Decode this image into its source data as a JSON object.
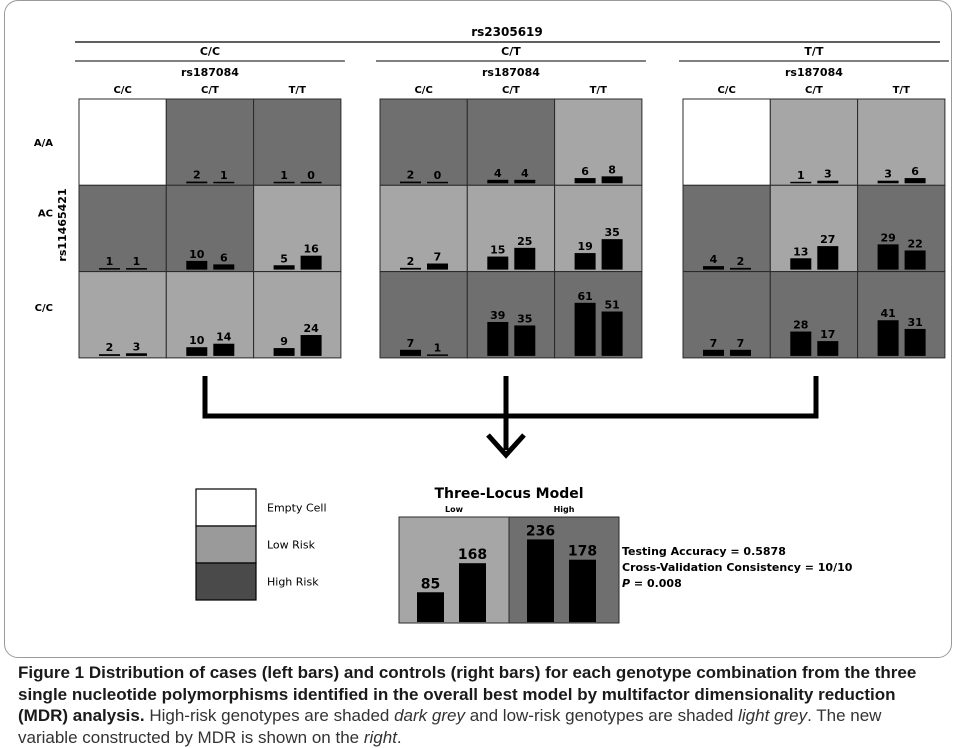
{
  "labels": {
    "top_snp": "rs2305619",
    "col_snp": "rs187084",
    "row_snp": "rs11465421",
    "top_genotypes": [
      "C/C",
      "C/T",
      "T/T"
    ],
    "col_genotypes": [
      "C/C",
      "C/T",
      "T/T"
    ],
    "row_genotypes": [
      "A/A",
      "AC",
      "C/C"
    ]
  },
  "colors": {
    "empty": "#ffffff",
    "low": "#a6a6a6",
    "high": "#6f6f6f",
    "legend_low": "#9a9a9a",
    "legend_high": "#4a4a4a",
    "bar": "#000000"
  },
  "chart_data": {
    "type": "bar",
    "description_bars": [
      "cases",
      "controls"
    ],
    "panels": [
      {
        "top_genotype": "C/C",
        "cells": [
          [
            {
              "risk": "empty",
              "values": null
            },
            {
              "risk": "high",
              "values": [
                2,
                1
              ]
            },
            {
              "risk": "high",
              "values": [
                1,
                0
              ]
            }
          ],
          [
            {
              "risk": "high",
              "values": [
                1,
                1
              ]
            },
            {
              "risk": "high",
              "values": [
                10,
                6
              ]
            },
            {
              "risk": "low",
              "values": [
                5,
                16
              ]
            }
          ],
          [
            {
              "risk": "low",
              "values": [
                2,
                3
              ]
            },
            {
              "risk": "low",
              "values": [
                10,
                14
              ]
            },
            {
              "risk": "low",
              "values": [
                9,
                24
              ]
            }
          ]
        ]
      },
      {
        "top_genotype": "C/T",
        "cells": [
          [
            {
              "risk": "high",
              "values": [
                2,
                0
              ]
            },
            {
              "risk": "high",
              "values": [
                4,
                4
              ]
            },
            {
              "risk": "low",
              "values": [
                6,
                8
              ]
            }
          ],
          [
            {
              "risk": "low",
              "values": [
                2,
                7
              ]
            },
            {
              "risk": "low",
              "values": [
                15,
                25
              ]
            },
            {
              "risk": "low",
              "values": [
                19,
                35
              ]
            }
          ],
          [
            {
              "risk": "high",
              "values": [
                7,
                1
              ]
            },
            {
              "risk": "high",
              "values": [
                39,
                35
              ]
            },
            {
              "risk": "high",
              "values": [
                61,
                51
              ]
            }
          ]
        ]
      },
      {
        "top_genotype": "T/T",
        "cells": [
          [
            {
              "risk": "empty",
              "values": null
            },
            {
              "risk": "low",
              "values": [
                1,
                3
              ]
            },
            {
              "risk": "low",
              "values": [
                3,
                6
              ]
            }
          ],
          [
            {
              "risk": "high",
              "values": [
                4,
                2
              ]
            },
            {
              "risk": "low",
              "values": [
                13,
                27
              ]
            },
            {
              "risk": "high",
              "values": [
                29,
                22
              ]
            }
          ],
          [
            {
              "risk": "high",
              "values": [
                7,
                7
              ]
            },
            {
              "risk": "high",
              "values": [
                28,
                17
              ]
            },
            {
              "risk": "high",
              "values": [
                41,
                31
              ]
            }
          ]
        ]
      }
    ],
    "model": {
      "title": "Three-Locus Model",
      "groups": [
        {
          "label": "Low",
          "risk": "low",
          "values": [
            85,
            168
          ]
        },
        {
          "label": "High",
          "risk": "high",
          "values": [
            236,
            178
          ]
        }
      ]
    }
  },
  "legend": [
    {
      "key": "empty",
      "label": "Empty Cell"
    },
    {
      "key": "low",
      "label": "Low Risk"
    },
    {
      "key": "high",
      "label": "High Risk"
    }
  ],
  "stats": {
    "accuracy": "Testing Accuracy = 0.5878",
    "consistency": "Cross-Validation Consistency = 10/10",
    "p_label": "P",
    "p_value": " = 0.008"
  },
  "caption": {
    "label": "Figure 1",
    "bold": "Distribution of cases (left bars) and controls (right bars) for each genotype combination from the three single nucleotide polymorphisms identified in the overall best model by multifactor dimensionality reduction (MDR) analysis.",
    "t1": "High-risk genotypes are shaded",
    "i1": "dark grey",
    "t2": "and low-risk genotypes are shaded",
    "i2": "light grey",
    "t3": ". The new variable constructed by MDR is shown on the",
    "i3": "right",
    "t4": "."
  }
}
